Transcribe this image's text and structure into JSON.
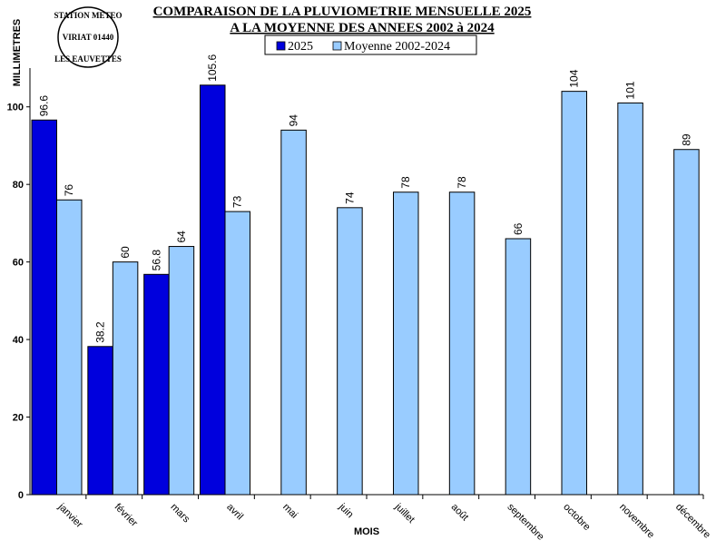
{
  "chart_data": {
    "type": "bar",
    "title": "COMPARAISON DE LA PLUVIOMETRIE MENSUELLE 2025",
    "subtitle": "A LA MOYENNE DES ANNEES 2002 à 2024",
    "xlabel": "MOIS",
    "ylabel": "MILLIMETRES",
    "ylim": [
      0,
      110
    ],
    "yticks": [
      0,
      20,
      40,
      60,
      80,
      100
    ],
    "grid": false,
    "legend_position": "top-center",
    "categories": [
      "janvier",
      "février",
      "mars",
      "avril",
      "mai",
      "juin",
      "juillet",
      "août",
      "septembre",
      "octobre",
      "novembre",
      "décembre"
    ],
    "series": [
      {
        "name": "2025",
        "color": "#0000dd",
        "values": [
          96.6,
          38.2,
          56.8,
          105.6,
          null,
          null,
          null,
          null,
          null,
          null,
          null,
          null
        ],
        "labels": [
          "96.6",
          "38.2",
          "56.8",
          "105.6",
          null,
          null,
          null,
          null,
          null,
          null,
          null,
          null
        ]
      },
      {
        "name": "Moyenne 2002-2024",
        "color": "#99ccff",
        "values": [
          76,
          60,
          64,
          73,
          94,
          74,
          78,
          78,
          66,
          104,
          101,
          89
        ],
        "labels": [
          "76",
          "60",
          "64",
          "73",
          "94",
          "74",
          "78",
          "78",
          "66",
          "104",
          "101",
          "89"
        ]
      }
    ]
  },
  "stamp": {
    "top": "STATION METEO",
    "middle": "VIRIAT 01440",
    "bottom": "LES EAUVETTES"
  }
}
